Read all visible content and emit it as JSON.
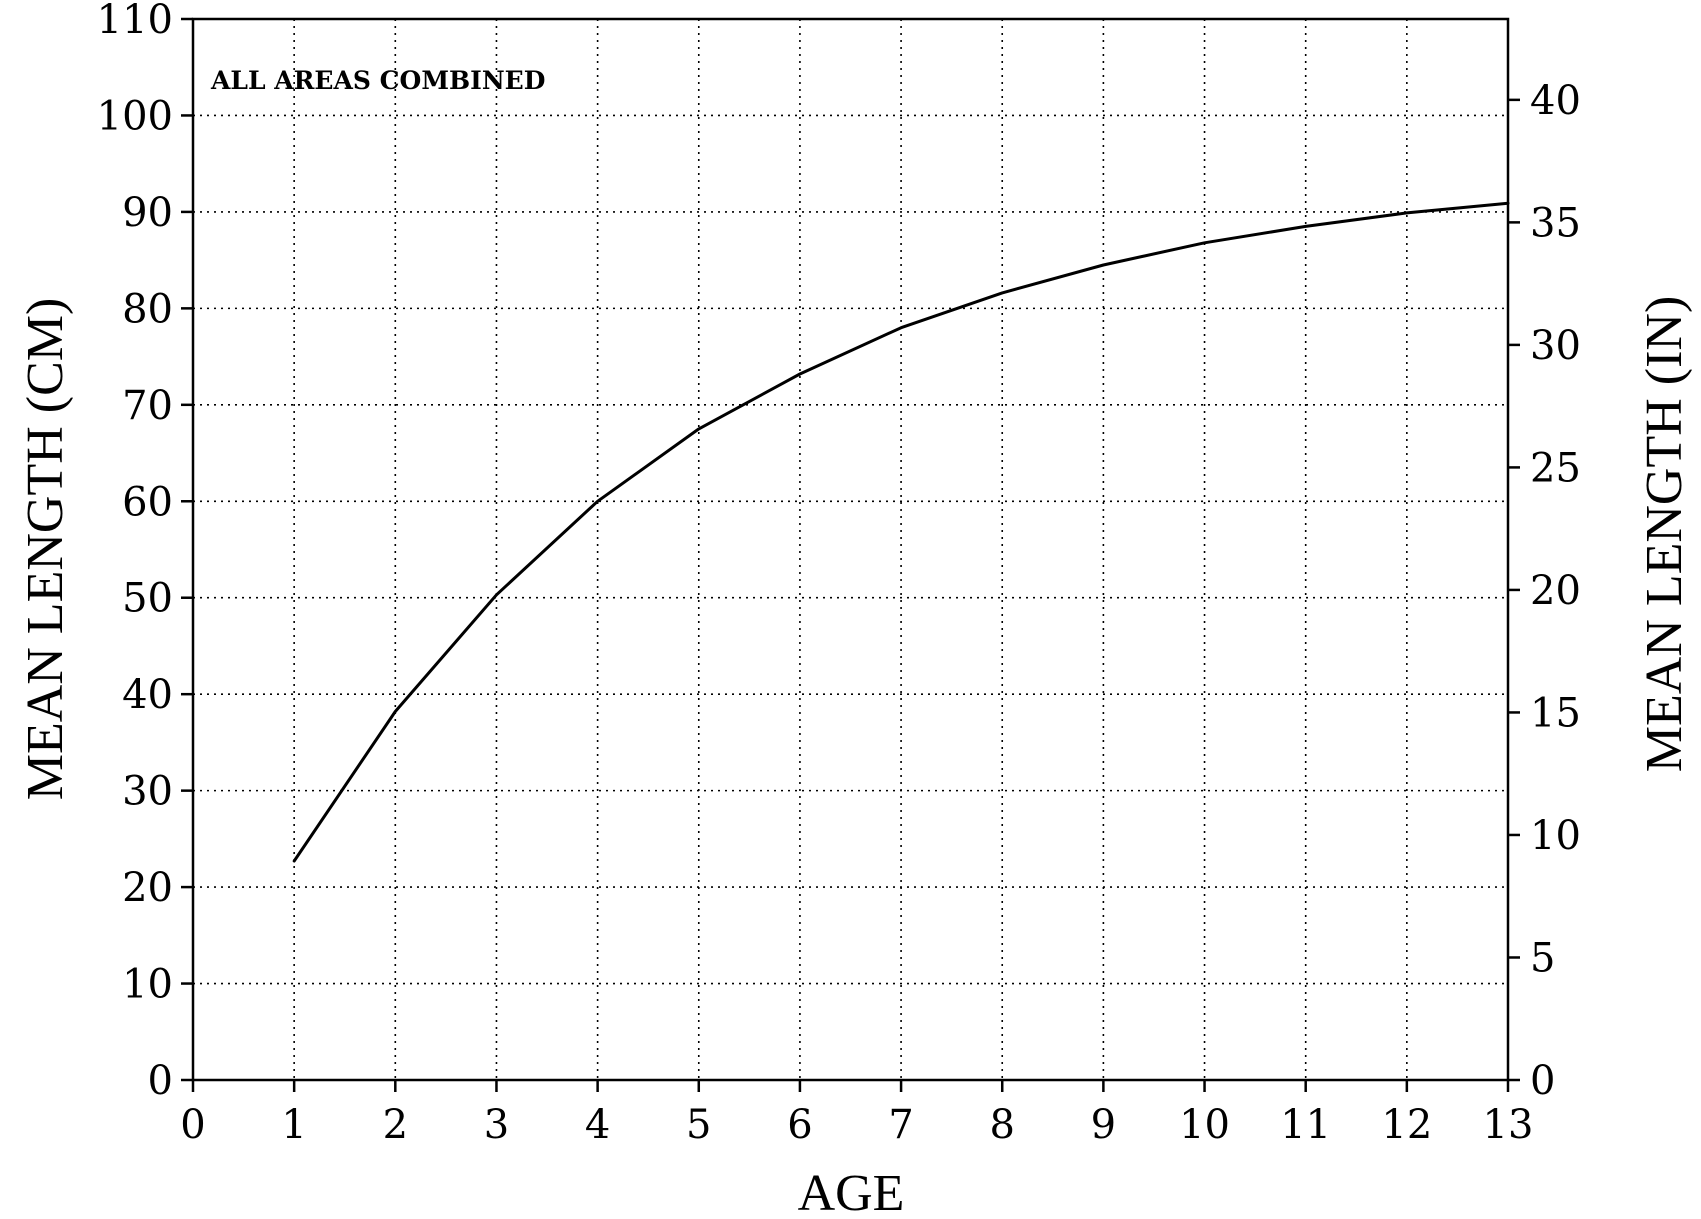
{
  "chart_data": {
    "type": "line",
    "annotation": "ALL AREAS COMBINED",
    "xlabel": "AGE",
    "ylabel_left": "MEAN LENGTH (CM)",
    "ylabel_right": "MEAN LENGTH (IN)",
    "xlim": [
      0,
      13
    ],
    "ylim_left": [
      0,
      110
    ],
    "ylim_right": [
      0,
      43.3
    ],
    "x_ticks": [
      "0",
      "1",
      "2",
      "3",
      "4",
      "5",
      "6",
      "7",
      "8",
      "9",
      "10",
      "11",
      "12",
      "13"
    ],
    "y_ticks_left": [
      "0",
      "10",
      "20",
      "30",
      "40",
      "50",
      "60",
      "70",
      "80",
      "90",
      "100",
      "110"
    ],
    "y_ticks_right": [
      "0",
      "5",
      "10",
      "15",
      "20",
      "25",
      "30",
      "35",
      "40"
    ],
    "grid": true,
    "series": [
      {
        "x": [
          1,
          2,
          3,
          4,
          5,
          6,
          7,
          8,
          9,
          10,
          11,
          12,
          13
        ],
        "values": [
          22.7,
          38.2,
          50.3,
          60.0,
          67.5,
          73.2,
          78.0,
          81.6,
          84.5,
          86.8,
          88.5,
          89.9,
          90.9
        ]
      }
    ]
  }
}
